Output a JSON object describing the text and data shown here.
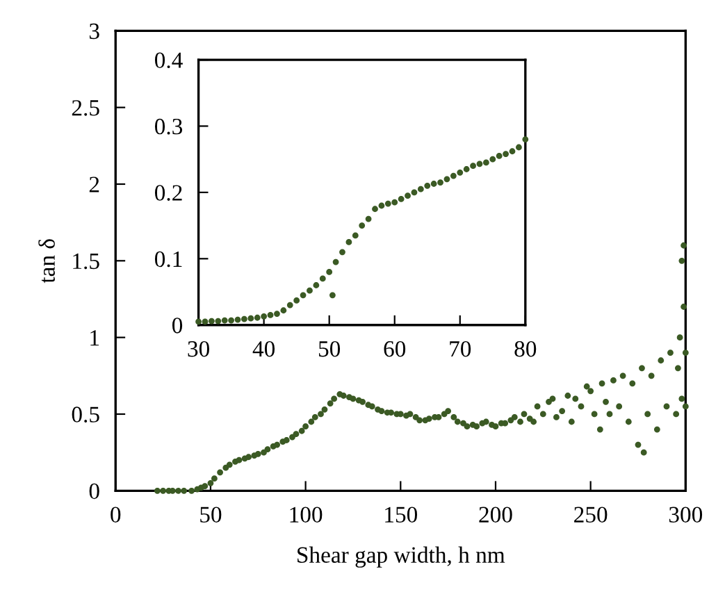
{
  "chart_data": [
    {
      "type": "scatter",
      "xlabel": "Shear gap width, h nm",
      "ylabel": "tan δ",
      "xlim": [
        0,
        300
      ],
      "ylim": [
        0,
        3
      ],
      "xticks": [
        0,
        50,
        100,
        150,
        200,
        250,
        300
      ],
      "yticks": [
        0,
        0.5,
        1,
        1.5,
        2,
        2.5,
        3
      ],
      "marker": "circle",
      "color": "#3b5a24",
      "x": [
        22,
        25,
        28,
        30,
        33,
        36,
        40,
        43,
        45,
        47,
        50,
        52,
        55,
        58,
        60,
        63,
        65,
        68,
        70,
        73,
        75,
        78,
        80,
        83,
        85,
        88,
        90,
        93,
        95,
        98,
        100,
        103,
        105,
        108,
        110,
        113,
        115,
        118,
        120,
        123,
        125,
        128,
        130,
        133,
        135,
        138,
        140,
        143,
        145,
        148,
        150,
        153,
        155,
        158,
        160,
        163,
        165,
        168,
        170,
        173,
        175,
        178,
        180,
        183,
        185,
        188,
        190,
        193,
        195,
        198,
        200,
        203,
        205,
        208,
        210,
        213,
        215,
        218,
        220,
        222,
        225,
        228,
        230,
        232,
        235,
        238,
        240,
        242,
        245,
        248,
        250,
        252,
        255,
        256,
        258,
        260,
        262,
        265,
        267,
        270,
        272,
        275,
        277,
        278,
        280,
        282,
        285,
        287,
        290,
        292,
        295,
        296,
        297,
        298,
        298,
        299,
        299,
        300,
        300
      ],
      "values": [
        0,
        0,
        0,
        0,
        0,
        0,
        0,
        0.01,
        0.02,
        0.03,
        0.05,
        0.08,
        0.12,
        0.15,
        0.17,
        0.19,
        0.2,
        0.21,
        0.22,
        0.23,
        0.24,
        0.25,
        0.27,
        0.29,
        0.3,
        0.32,
        0.33,
        0.35,
        0.37,
        0.39,
        0.42,
        0.45,
        0.48,
        0.5,
        0.53,
        0.57,
        0.6,
        0.63,
        0.62,
        0.61,
        0.6,
        0.59,
        0.58,
        0.56,
        0.55,
        0.53,
        0.52,
        0.51,
        0.51,
        0.5,
        0.5,
        0.49,
        0.5,
        0.48,
        0.46,
        0.46,
        0.47,
        0.48,
        0.48,
        0.5,
        0.52,
        0.48,
        0.45,
        0.44,
        0.42,
        0.43,
        0.42,
        0.44,
        0.45,
        0.43,
        0.42,
        0.44,
        0.44,
        0.46,
        0.48,
        0.45,
        0.5,
        0.47,
        0.45,
        0.55,
        0.5,
        0.58,
        0.6,
        0.48,
        0.52,
        0.62,
        0.45,
        0.6,
        0.55,
        0.68,
        0.65,
        0.5,
        0.4,
        0.7,
        0.58,
        0.5,
        0.72,
        0.55,
        0.75,
        0.45,
        0.7,
        0.3,
        0.8,
        0.25,
        0.5,
        0.75,
        0.4,
        0.85,
        0.55,
        0.9,
        0.5,
        0.8,
        1.0,
        1.5,
        0.6,
        1.6,
        1.2,
        0.9,
        0.55
      ]
    },
    {
      "type": "scatter",
      "xlim": [
        30,
        80
      ],
      "ylim": [
        0,
        0.4
      ],
      "xticks": [
        30,
        40,
        50,
        60,
        70,
        80
      ],
      "yticks": [
        0,
        0.1,
        0.2,
        0.3,
        0.4
      ],
      "marker": "circle",
      "color": "#3b5a24",
      "x": [
        30,
        31,
        32,
        33,
        34,
        35,
        36,
        37,
        38,
        39,
        40,
        41,
        42,
        43,
        44,
        45,
        46,
        47,
        48,
        49,
        50,
        50.5,
        51,
        52,
        53,
        54,
        55,
        56,
        57,
        58,
        59,
        60,
        61,
        62,
        63,
        64,
        65,
        66,
        67,
        68,
        69,
        70,
        71,
        72,
        73,
        74,
        75,
        76,
        77,
        78,
        79,
        80
      ],
      "values": [
        0.005,
        0.005,
        0.006,
        0.006,
        0.007,
        0.007,
        0.008,
        0.009,
        0.01,
        0.011,
        0.013,
        0.015,
        0.017,
        0.022,
        0.03,
        0.037,
        0.045,
        0.052,
        0.06,
        0.07,
        0.08,
        0.045,
        0.095,
        0.11,
        0.125,
        0.135,
        0.15,
        0.16,
        0.175,
        0.18,
        0.183,
        0.185,
        0.19,
        0.195,
        0.2,
        0.205,
        0.21,
        0.213,
        0.215,
        0.22,
        0.225,
        0.23,
        0.235,
        0.24,
        0.243,
        0.245,
        0.25,
        0.255,
        0.258,
        0.262,
        0.268,
        0.28
      ]
    }
  ]
}
